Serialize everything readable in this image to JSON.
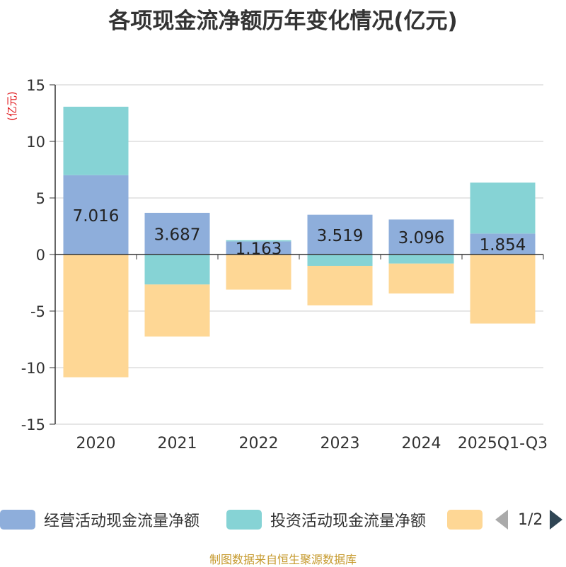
{
  "chart_data": {
    "type": "bar",
    "stacked": true,
    "title": "各项现金流净额历年变化情况(亿元)",
    "ylabel": "(亿元)",
    "ylim": [
      -15,
      15
    ],
    "yticks": [
      15,
      10,
      5,
      0,
      -5,
      -10,
      -15
    ],
    "categories": [
      "2020",
      "2021",
      "2022",
      "2023",
      "2024",
      "2025Q1-Q3"
    ],
    "series": [
      {
        "name": "经营活动现金流量净额",
        "color": "#8eaedb",
        "values": [
          7.016,
          3.687,
          1.163,
          3.519,
          3.096,
          1.854
        ],
        "labels": [
          "7.016",
          "3.687",
          "1.163",
          "3.519",
          "3.096",
          "1.854"
        ]
      },
      {
        "name": "投资活动现金流量净额",
        "color": "#86d3d5",
        "values": [
          6.05,
          -2.65,
          0.1,
          -1.0,
          -0.8,
          4.5
        ]
      },
      {
        "name": "",
        "color": "#fed795",
        "values": [
          -10.85,
          -4.6,
          -3.1,
          -3.5,
          -2.65,
          -6.1
        ]
      }
    ]
  },
  "legend": {
    "page_text": "1/2"
  },
  "source": "制图数据来自恒生聚源数据库"
}
